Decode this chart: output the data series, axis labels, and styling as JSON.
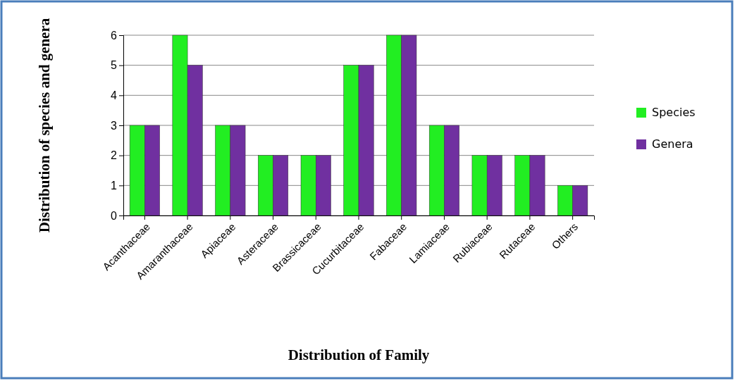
{
  "chart_data": {
    "type": "bar",
    "xlabel": "Distribution of Family",
    "ylabel": "Distribution of species and genera",
    "categories": [
      "Acanthaceae",
      "Amaranthaceae",
      "Apiaceae",
      "Asteraceae",
      "Brassicaceae",
      "Cucurbitaceae",
      "Fabaceae",
      "Lamiaceae",
      "Rubiaceae",
      "Rutaceae",
      "Others"
    ],
    "series": [
      {
        "name": "Species",
        "color": "#22ee22",
        "values": [
          3,
          6,
          3,
          2,
          2,
          5,
          6,
          3,
          2,
          2,
          1
        ]
      },
      {
        "name": "Genera",
        "color": "#7030a0",
        "values": [
          3,
          5,
          3,
          2,
          2,
          5,
          6,
          3,
          2,
          2,
          1
        ]
      }
    ],
    "ylim": [
      0,
      6
    ],
    "yticks": [
      0,
      1,
      2,
      3,
      4,
      5,
      6
    ],
    "grid": "y",
    "legend": "right"
  }
}
